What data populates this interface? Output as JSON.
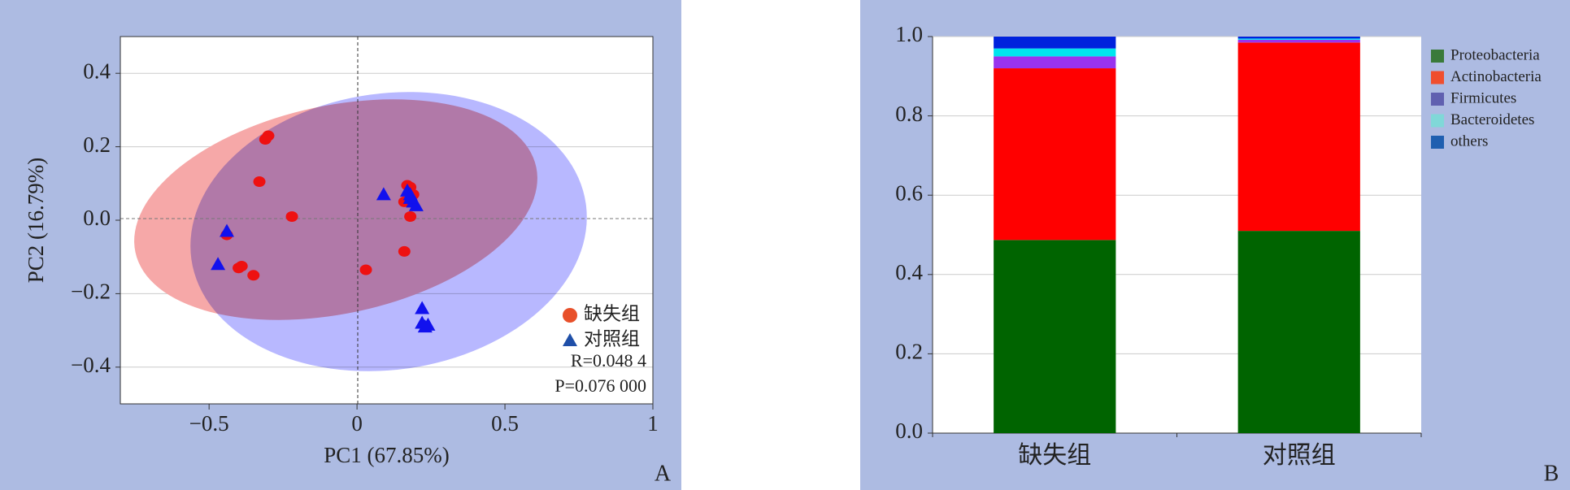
{
  "chart_data": [
    {
      "type": "scatter",
      "panel_label": "A",
      "x_label": "PC1 (67.85%)",
      "y_label": "PC2 (16.79%)",
      "xlim": [
        -0.8,
        1
      ],
      "ylim": [
        -0.5,
        0.5
      ],
      "xticks": [
        {
          "value": -0.5,
          "label": "−0.5"
        },
        0,
        0.5,
        1
      ],
      "yticks": [
        0.4,
        0.2,
        {
          "value": 0,
          "label": "0.0"
        },
        {
          "value": -0.2,
          "label": "−0.2"
        },
        {
          "value": -0.4,
          "label": "−0.4"
        }
      ],
      "grid": true,
      "series": [
        {
          "name": "缺失组",
          "color": "#ee1111",
          "legend_color": "#e8502a",
          "marker": "circle",
          "x": [
            -0.3,
            -0.31,
            -0.33,
            -0.22,
            -0.44,
            -0.4,
            -0.39,
            -0.35,
            0.03,
            0.16,
            0.18,
            0.17,
            0.16,
            0.18,
            0.19
          ],
          "y": [
            0.23,
            0.22,
            0.105,
            0.01,
            -0.04,
            -0.13,
            -0.125,
            -0.15,
            -0.135,
            -0.085,
            0.01,
            0.095,
            0.05,
            0.09,
            0.07
          ]
        },
        {
          "name": "对照组",
          "color": "#1111ee",
          "legend_color": "#1f4fa8",
          "marker": "triangle",
          "x": [
            -0.44,
            -0.47,
            0.09,
            0.17,
            0.18,
            0.19,
            0.2,
            0.18,
            0.22,
            0.22,
            0.24,
            0.23
          ],
          "y": [
            -0.03,
            -0.12,
            0.07,
            0.08,
            0.07,
            0.05,
            0.04,
            0.06,
            -0.24,
            -0.28,
            -0.285,
            -0.29
          ]
        }
      ],
      "annotations": [
        "R=0.048 4",
        "P=0.076 000"
      ]
    },
    {
      "type": "stacked_bar",
      "panel_label": "B",
      "categories": [
        "缺失组",
        "对照组"
      ],
      "ylim": [
        0,
        1
      ],
      "yticks": [
        {
          "value": 0,
          "label": "0.0"
        },
        0.2,
        0.4,
        0.6,
        0.8,
        {
          "value": 1,
          "label": "1.0"
        }
      ],
      "grid": true,
      "series": [
        {
          "name": "Proteobacteria",
          "color": "#006400",
          "legend_color": "#3a7a3a",
          "values": [
            0.487,
            0.51
          ]
        },
        {
          "name": "Actinobacteria",
          "color": "#ff0000",
          "legend_color": "#f04e2e",
          "values": [
            0.433,
            0.475
          ]
        },
        {
          "name": "Firmicutes",
          "color": "#9933ee",
          "legend_color": "#6060b0",
          "values": [
            0.03,
            0.007
          ]
        },
        {
          "name": "Bacteroidetes",
          "color": "#00e5ee",
          "legend_color": "#80d8d8",
          "values": [
            0.02,
            0.003
          ]
        },
        {
          "name": "others",
          "color": "#0022dd",
          "legend_color": "#1f5fb0",
          "values": [
            0.03,
            0.005
          ]
        }
      ]
    }
  ]
}
